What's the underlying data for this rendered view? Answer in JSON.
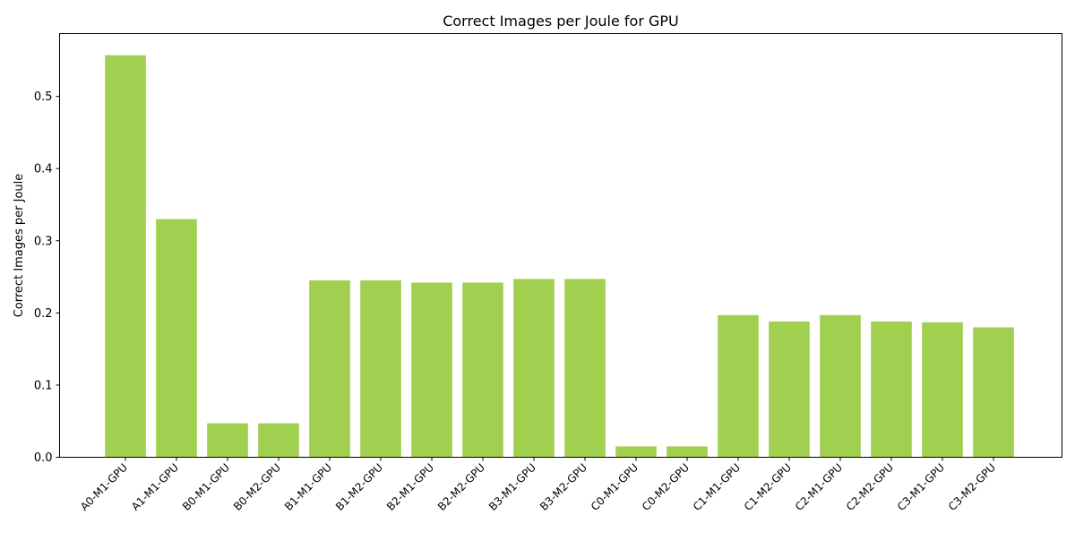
{
  "chart_data": {
    "type": "bar",
    "title": "Correct Images per Joule for GPU",
    "xlabel": "",
    "ylabel": "Correct Images per Joule",
    "categories": [
      "A0-M1-GPU",
      "A1-M1-GPU",
      "B0-M1-GPU",
      "B0-M2-GPU",
      "B1-M1-GPU",
      "B1-M2-GPU",
      "B2-M1-GPU",
      "B2-M2-GPU",
      "B3-M1-GPU",
      "B3-M2-GPU",
      "C0-M1-GPU",
      "C0-M2-GPU",
      "C1-M1-GPU",
      "C1-M2-GPU",
      "C2-M1-GPU",
      "C2-M2-GPU",
      "C3-M1-GPU",
      "C3-M2-GPU"
    ],
    "values": [
      0.557,
      0.33,
      0.047,
      0.047,
      0.245,
      0.245,
      0.242,
      0.242,
      0.247,
      0.247,
      0.015,
      0.015,
      0.197,
      0.188,
      0.197,
      0.188,
      0.187,
      0.18
    ],
    "ylim": [
      0,
      0.587
    ],
    "yticks": [
      0.0,
      0.1,
      0.2,
      0.3,
      0.4,
      0.5
    ],
    "ytick_labels": [
      "0.0",
      "0.1",
      "0.2",
      "0.3",
      "0.4",
      "0.5"
    ],
    "bar_color": "#a1cf50",
    "grid": false,
    "legend": "none"
  }
}
